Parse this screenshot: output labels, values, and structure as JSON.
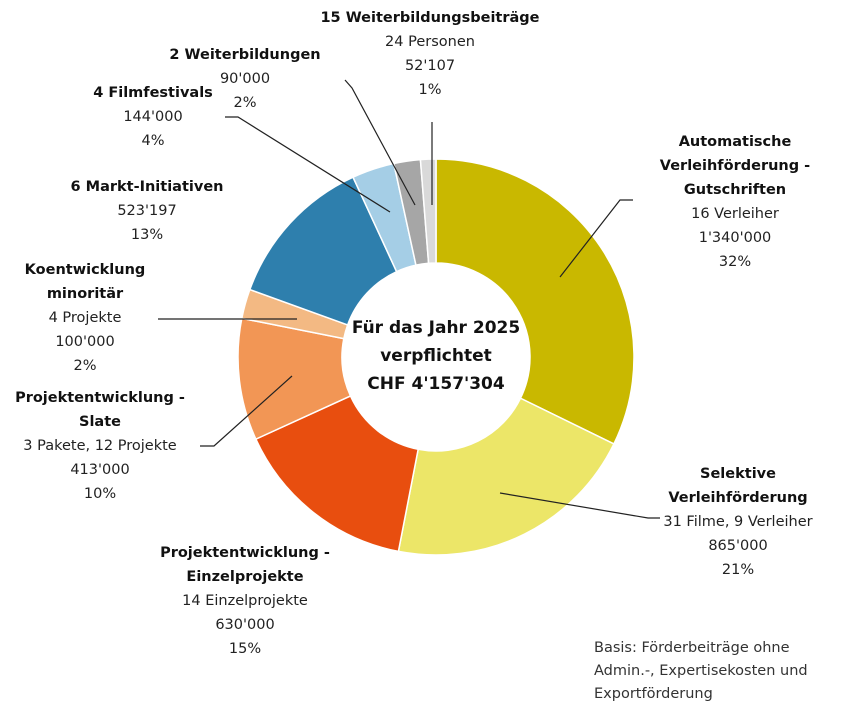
{
  "chart_data": {
    "type": "pie",
    "donut": true,
    "categories": [
      [
        "Automatische",
        "Verleihförderung -",
        "Gutschriften"
      ],
      [
        "Selektive",
        "Verleihförderung"
      ],
      [
        "Projektentwicklung -",
        "Einzelprojekte"
      ],
      [
        "Projektentwicklung -",
        "Slate"
      ],
      [
        "Koentwicklung",
        "minoritär"
      ],
      [
        "6 Markt-Initiativen"
      ],
      [
        "4 Filmfestivals"
      ],
      [
        "2 Weiterbildungen"
      ],
      [
        "15 Weiterbildungsbeiträge"
      ]
    ],
    "details": [
      "16 Verleiher",
      "31 Filme, 9 Verleiher",
      "14 Einzelprojekte",
      "3 Pakete, 12 Projekte",
      "4 Projekte",
      null,
      null,
      null,
      "24 Personen"
    ],
    "values": [
      1340000,
      865000,
      630000,
      413000,
      100000,
      523197,
      144000,
      90000,
      52107
    ],
    "value_labels": [
      "1'340'000",
      "865'000",
      "630'000",
      "413'000",
      "100'000",
      "523'197",
      "144'000",
      "90'000",
      "52'107"
    ],
    "shares": [
      32,
      21,
      15,
      10,
      2,
      13,
      4,
      2,
      1
    ],
    "share_labels": [
      "32%",
      "21%",
      "15%",
      "10%",
      "2%",
      "13%",
      "4%",
      "2%",
      "1%"
    ],
    "colors": [
      "#c9b800",
      "#ece668",
      "#e84e0f",
      "#f29655",
      "#f3b983",
      "#2e7fad",
      "#a5cee6",
      "#a6a6a6",
      "#d9d9d9"
    ],
    "center_text": [
      "Für das Jahr 2025",
      "verpflichtet",
      "CHF 4'157'304"
    ],
    "footnote": [
      "Basis: Förderbeiträge ohne",
      "Admin.-,  Expertisekosten und",
      "Exportförderung"
    ]
  }
}
